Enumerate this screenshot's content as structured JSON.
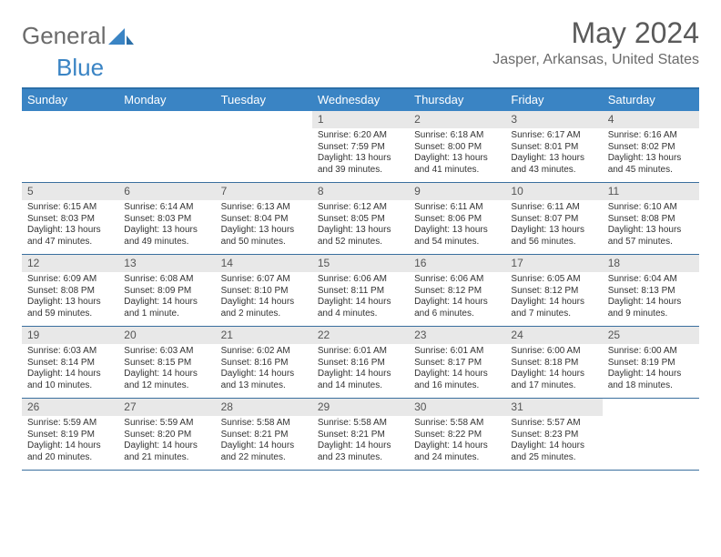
{
  "brand": {
    "part1": "General",
    "part2": "Blue"
  },
  "title": "May 2024",
  "location": "Jasper, Arkansas, United States",
  "weekdays": [
    "Sunday",
    "Monday",
    "Tuesday",
    "Wednesday",
    "Thursday",
    "Friday",
    "Saturday"
  ],
  "colors": {
    "header_bg": "#3a84c4",
    "border": "#3a6f9e",
    "daynum_bg": "#e8e8e8",
    "text": "#333333",
    "title_text": "#5a5a5a"
  },
  "weeks": [
    [
      {
        "n": "",
        "sr": "",
        "ss": "",
        "dl": ""
      },
      {
        "n": "",
        "sr": "",
        "ss": "",
        "dl": ""
      },
      {
        "n": "",
        "sr": "",
        "ss": "",
        "dl": ""
      },
      {
        "n": "1",
        "sr": "6:20 AM",
        "ss": "7:59 PM",
        "dl": "13 hours and 39 minutes."
      },
      {
        "n": "2",
        "sr": "6:18 AM",
        "ss": "8:00 PM",
        "dl": "13 hours and 41 minutes."
      },
      {
        "n": "3",
        "sr": "6:17 AM",
        "ss": "8:01 PM",
        "dl": "13 hours and 43 minutes."
      },
      {
        "n": "4",
        "sr": "6:16 AM",
        "ss": "8:02 PM",
        "dl": "13 hours and 45 minutes."
      }
    ],
    [
      {
        "n": "5",
        "sr": "6:15 AM",
        "ss": "8:03 PM",
        "dl": "13 hours and 47 minutes."
      },
      {
        "n": "6",
        "sr": "6:14 AM",
        "ss": "8:03 PM",
        "dl": "13 hours and 49 minutes."
      },
      {
        "n": "7",
        "sr": "6:13 AM",
        "ss": "8:04 PM",
        "dl": "13 hours and 50 minutes."
      },
      {
        "n": "8",
        "sr": "6:12 AM",
        "ss": "8:05 PM",
        "dl": "13 hours and 52 minutes."
      },
      {
        "n": "9",
        "sr": "6:11 AM",
        "ss": "8:06 PM",
        "dl": "13 hours and 54 minutes."
      },
      {
        "n": "10",
        "sr": "6:11 AM",
        "ss": "8:07 PM",
        "dl": "13 hours and 56 minutes."
      },
      {
        "n": "11",
        "sr": "6:10 AM",
        "ss": "8:08 PM",
        "dl": "13 hours and 57 minutes."
      }
    ],
    [
      {
        "n": "12",
        "sr": "6:09 AM",
        "ss": "8:08 PM",
        "dl": "13 hours and 59 minutes."
      },
      {
        "n": "13",
        "sr": "6:08 AM",
        "ss": "8:09 PM",
        "dl": "14 hours and 1 minute."
      },
      {
        "n": "14",
        "sr": "6:07 AM",
        "ss": "8:10 PM",
        "dl": "14 hours and 2 minutes."
      },
      {
        "n": "15",
        "sr": "6:06 AM",
        "ss": "8:11 PM",
        "dl": "14 hours and 4 minutes."
      },
      {
        "n": "16",
        "sr": "6:06 AM",
        "ss": "8:12 PM",
        "dl": "14 hours and 6 minutes."
      },
      {
        "n": "17",
        "sr": "6:05 AM",
        "ss": "8:12 PM",
        "dl": "14 hours and 7 minutes."
      },
      {
        "n": "18",
        "sr": "6:04 AM",
        "ss": "8:13 PM",
        "dl": "14 hours and 9 minutes."
      }
    ],
    [
      {
        "n": "19",
        "sr": "6:03 AM",
        "ss": "8:14 PM",
        "dl": "14 hours and 10 minutes."
      },
      {
        "n": "20",
        "sr": "6:03 AM",
        "ss": "8:15 PM",
        "dl": "14 hours and 12 minutes."
      },
      {
        "n": "21",
        "sr": "6:02 AM",
        "ss": "8:16 PM",
        "dl": "14 hours and 13 minutes."
      },
      {
        "n": "22",
        "sr": "6:01 AM",
        "ss": "8:16 PM",
        "dl": "14 hours and 14 minutes."
      },
      {
        "n": "23",
        "sr": "6:01 AM",
        "ss": "8:17 PM",
        "dl": "14 hours and 16 minutes."
      },
      {
        "n": "24",
        "sr": "6:00 AM",
        "ss": "8:18 PM",
        "dl": "14 hours and 17 minutes."
      },
      {
        "n": "25",
        "sr": "6:00 AM",
        "ss": "8:19 PM",
        "dl": "14 hours and 18 minutes."
      }
    ],
    [
      {
        "n": "26",
        "sr": "5:59 AM",
        "ss": "8:19 PM",
        "dl": "14 hours and 20 minutes."
      },
      {
        "n": "27",
        "sr": "5:59 AM",
        "ss": "8:20 PM",
        "dl": "14 hours and 21 minutes."
      },
      {
        "n": "28",
        "sr": "5:58 AM",
        "ss": "8:21 PM",
        "dl": "14 hours and 22 minutes."
      },
      {
        "n": "29",
        "sr": "5:58 AM",
        "ss": "8:21 PM",
        "dl": "14 hours and 23 minutes."
      },
      {
        "n": "30",
        "sr": "5:58 AM",
        "ss": "8:22 PM",
        "dl": "14 hours and 24 minutes."
      },
      {
        "n": "31",
        "sr": "5:57 AM",
        "ss": "8:23 PM",
        "dl": "14 hours and 25 minutes."
      },
      {
        "n": "",
        "sr": "",
        "ss": "",
        "dl": ""
      }
    ]
  ],
  "labels": {
    "sunrise": "Sunrise: ",
    "sunset": "Sunset: ",
    "daylight": "Daylight: "
  }
}
